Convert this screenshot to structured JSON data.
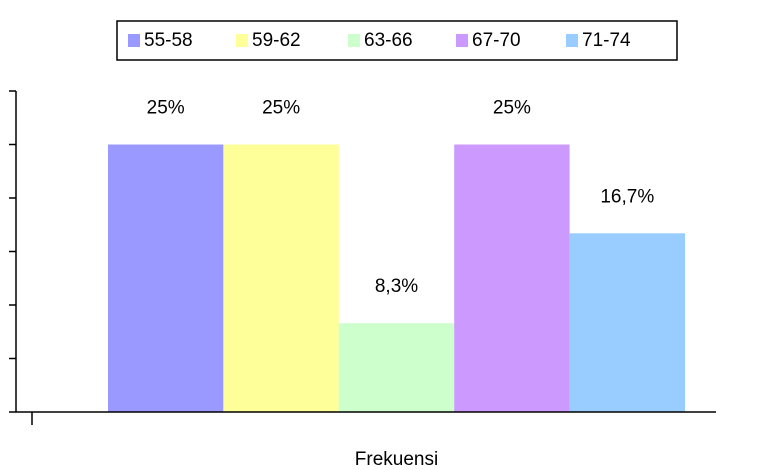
{
  "chart_data": {
    "type": "bar",
    "categories": [
      "Frekuensi"
    ],
    "series": [
      {
        "name": "55-58",
        "color": "#9999ff",
        "values": [
          25
        ],
        "value_labels": [
          "25%"
        ]
      },
      {
        "name": "59-62",
        "color": "#ffff99",
        "values": [
          25
        ],
        "value_labels": [
          "25%"
        ]
      },
      {
        "name": "63-66",
        "color": "#ccffcc",
        "values": [
          8.3
        ],
        "value_labels": [
          "8,3%"
        ]
      },
      {
        "name": "67-70",
        "color": "#cc99ff",
        "values": [
          25
        ],
        "value_labels": [
          "25%"
        ]
      },
      {
        "name": "71-74",
        "color": "#99ccff",
        "values": [
          16.7
        ],
        "value_labels": [
          "16,7%"
        ]
      }
    ],
    "ylim": [
      0,
      30
    ],
    "yticks": [
      0,
      5,
      10,
      15,
      20,
      25,
      30
    ],
    "legend": "top"
  }
}
